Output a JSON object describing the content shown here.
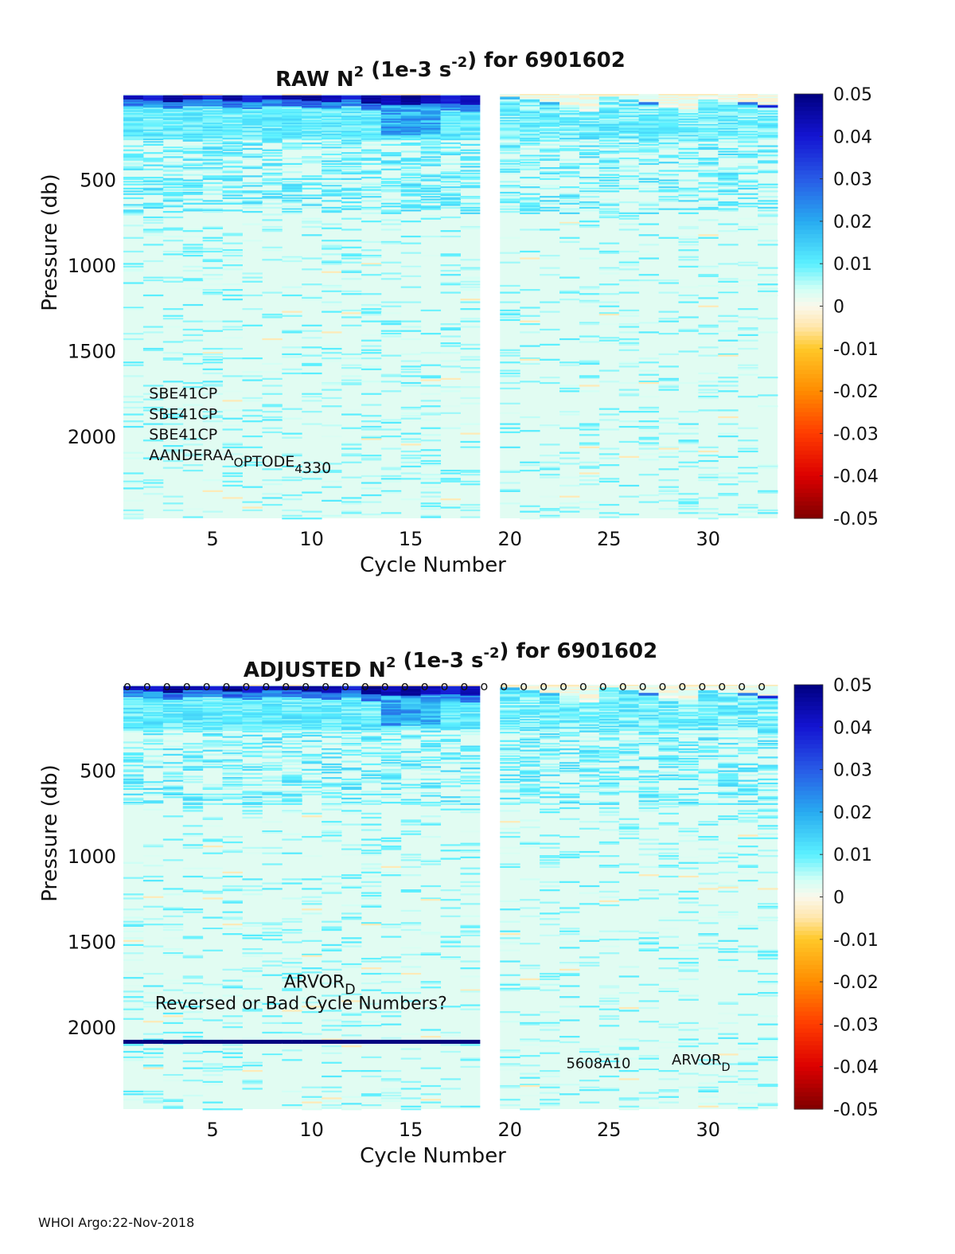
{
  "footer": "WHOI Argo:22-Nov-2018",
  "chart_data": [
    {
      "type": "heatmap",
      "title": "RAW N² (1e-3 s⁻²) for 6901602",
      "title_parts": {
        "base": "RAW N",
        "sup1": "2",
        "mid": " (1e-3 s",
        "sup2": "-2",
        "end": ") for 6901602"
      },
      "xlabel": "Cycle Number",
      "ylabel": "Pressure (db)",
      "xlim": [
        1,
        33
      ],
      "ylim": [
        0,
        2480
      ],
      "xticks": [
        5,
        10,
        15,
        20,
        25,
        30
      ],
      "yticks": [
        500,
        1000,
        1500,
        2000
      ],
      "missing_cycles": [
        19
      ],
      "colorbar": {
        "min": -0.05,
        "max": 0.05,
        "ticks": [
          "0.05",
          "0.04",
          "0.03",
          "0.02",
          "0.01",
          "0",
          "-0.01",
          "-0.02",
          "-0.03",
          "-0.04",
          "-0.05"
        ]
      },
      "surface_n2": [
        0.045,
        0.04,
        0.05,
        0.045,
        0.04,
        0.05,
        0.04,
        0.045,
        0.05,
        0.05,
        0.045,
        0.04,
        0.05,
        0.045,
        0.05,
        0.045,
        0.04,
        0.045,
        null,
        0.02,
        0.015,
        0.02,
        0.005,
        0.0,
        0.01,
        0.015,
        0.03,
        0.0,
        0.005,
        0.0,
        0.002,
        0.03,
        0.04
      ],
      "annotations": [
        {
          "text": "SBE41CP",
          "x": 3,
          "y": 1780
        },
        {
          "text": "SBE41CP",
          "x": 3,
          "y": 1900
        },
        {
          "text": "SBE41CP",
          "x": 3,
          "y": 2020
        },
        {
          "text": "AANDERAA",
          "sub": "O",
          "text2": "PTODE",
          "sub2": "4",
          "text3": "330",
          "x": 3,
          "y": 2140
        }
      ],
      "qc_markers": false
    },
    {
      "type": "heatmap",
      "title": "ADJUSTED N² (1e-3 s⁻²) for 6901602",
      "title_parts": {
        "base": "ADJUSTED N",
        "sup1": "2",
        "mid": " (1e-3 s",
        "sup2": "-2",
        "end": ") for 6901602"
      },
      "xlabel": "Cycle Number",
      "ylabel": "Pressure (db)",
      "xlim": [
        1,
        33
      ],
      "ylim": [
        0,
        2480
      ],
      "xticks": [
        5,
        10,
        15,
        20,
        25,
        30
      ],
      "yticks": [
        500,
        1000,
        1500,
        2000
      ],
      "missing_cycles": [
        19
      ],
      "colorbar": {
        "min": -0.05,
        "max": 0.05,
        "ticks": [
          "0.05",
          "0.04",
          "0.03",
          "0.02",
          "0.01",
          "0",
          "-0.01",
          "-0.02",
          "-0.03",
          "-0.04",
          "-0.05"
        ]
      },
      "surface_n2": [
        0.045,
        0.04,
        0.05,
        0.045,
        0.04,
        0.05,
        0.04,
        0.045,
        0.05,
        0.05,
        0.045,
        0.04,
        0.05,
        0.045,
        0.05,
        0.045,
        0.04,
        0.045,
        null,
        0.02,
        0.015,
        0.02,
        0.005,
        0.0,
        0.01,
        0.015,
        0.03,
        0.0,
        0.005,
        0.0,
        0.002,
        0.03,
        0.04
      ],
      "deep_band_pressure": 2075,
      "annotations": [
        {
          "text": "ARVOR",
          "sub": "D",
          "x": 10,
          "y": 1770,
          "size": 22
        },
        {
          "text": "Reversed or Bad Cycle Numbers?",
          "x": 3.3,
          "y": 1895,
          "size": 22
        },
        {
          "text": "5608A10",
          "x": 24,
          "y": 2240,
          "size": 18
        },
        {
          "text": "ARVOR",
          "sub": "D",
          "x": 29,
          "y": 2220,
          "size": 18
        }
      ],
      "qc_markers": true,
      "qc_marker_symbol": "o"
    }
  ]
}
